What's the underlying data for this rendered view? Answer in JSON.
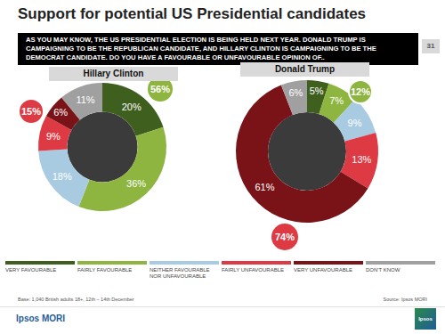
{
  "title": "Support for potential US Presidential candidates",
  "question": "AS YOU MAY KNOW, THE US PRESIDENTIAL ELECTION IS BEING HELD NEXT YEAR. DONALD TRUMP IS CAMPAIGNING TO BE THE REPUBLICAN CANDIDATE, AND HILLARY CLINTON IS CAMPAIGNING TO BE THE DEMOCRAT CANDIDATE. DO YOU HAVE A FAVOURABLE OR UNFAVOURABLE OPINION OF..",
  "page_number": "31",
  "chart_data": [
    {
      "type": "pie",
      "title": "Hillary Clinton",
      "categories": [
        "VERY FAVOURABLE",
        "FAIRLY FAVOURABLE",
        "NEITHER FAVOURABLE NOR UNFAVOURABLE",
        "FAIRLY UNFAVOURABLE",
        "VERY UNFAVOURABLE",
        "DON'T KNOW"
      ],
      "values": [
        20,
        36,
        18,
        9,
        6,
        11
      ],
      "value_labels": [
        "20%",
        "36%",
        "18%",
        "9%",
        "6%",
        "11%"
      ],
      "colors": [
        "#3f5f1f",
        "#8db53f",
        "#a8cbe2",
        "#de3a44",
        "#7a1318",
        "#a0a0a0"
      ],
      "data_labels": true,
      "legend": "bottom",
      "annotations": [
        {
          "text": "56%",
          "color": "#8db53f"
        },
        {
          "text": "15%",
          "color": "#de3a44"
        }
      ]
    },
    {
      "type": "pie",
      "title": "Donald Trump",
      "categories": [
        "VERY FAVOURABLE",
        "FAIRLY FAVOURABLE",
        "NEITHER FAVOURABLE NOR UNFAVOURABLE",
        "FAIRLY UNFAVOURABLE",
        "VERY UNFAVOURABLE",
        "DON'T KNOW"
      ],
      "values": [
        5,
        7,
        9,
        13,
        61,
        6
      ],
      "value_labels": [
        "5%",
        "7%",
        "9%",
        "13%",
        "61%",
        "6%"
      ],
      "colors": [
        "#3f5f1f",
        "#8db53f",
        "#a8cbe2",
        "#de3a44",
        "#7a1318",
        "#a0a0a0"
      ],
      "data_labels": true,
      "annotations": [
        {
          "text": "12%",
          "color": "#8db53f"
        },
        {
          "text": "74%",
          "color": "#de3a44"
        }
      ]
    }
  ],
  "base": "Base: 1,040 British adults 18+, 12th – 14th December",
  "source": "Source: Ipsos MORI",
  "footer": "Ipsos MORI",
  "logo": "Ipsos"
}
